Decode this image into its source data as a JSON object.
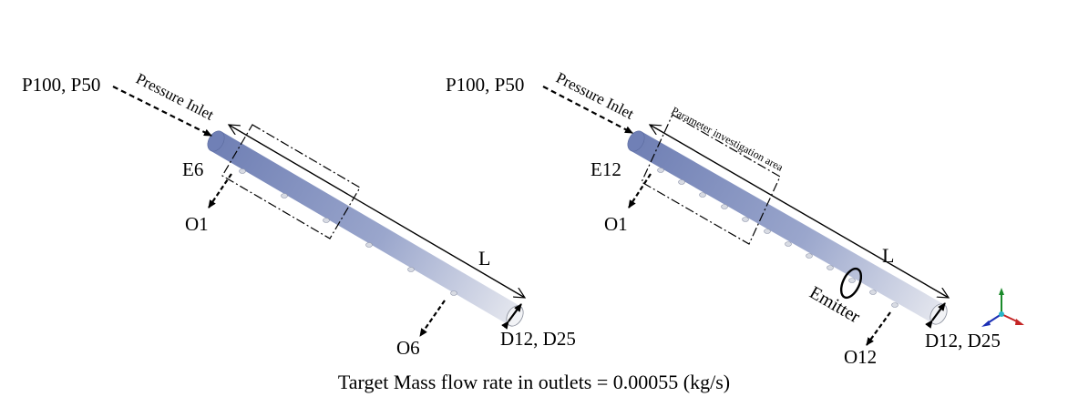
{
  "left_model": {
    "inlet_label": "P100, P50",
    "inlet_tag": "Pressure Inlet",
    "emitter_label": "E6",
    "first_outlet": "O1",
    "last_outlet": "O6",
    "length_label": "L",
    "diameter_label": "D12, D25"
  },
  "right_model": {
    "inlet_label": "P100, P50",
    "inlet_tag": "Pressure Inlet",
    "area_label": "Parameter investigation area",
    "emitter_label": "E12",
    "first_outlet": "O1",
    "last_outlet": "O12",
    "length_label": "L",
    "emitter_tag": "Emitter",
    "diameter_label": "D12, D25"
  },
  "caption": "Target Mass flow rate in outlets = 0.00055 (kg/s)",
  "colors": {
    "pipe_start": "#6f7fb4",
    "pipe_end": "#e6e8ef",
    "hole": "#d8dbe3"
  }
}
